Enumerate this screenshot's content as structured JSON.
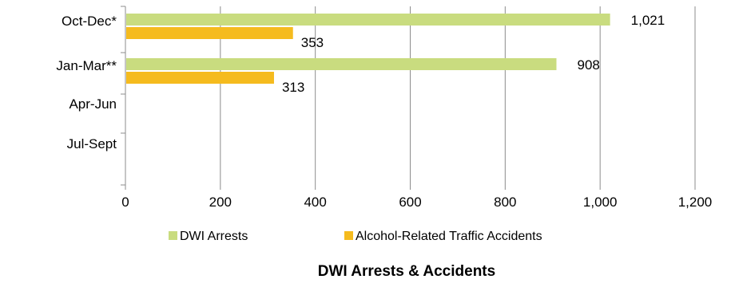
{
  "chart_data": {
    "type": "bar",
    "orientation": "horizontal",
    "title": "DWI Arrests & Accidents",
    "categories": [
      "Oct-Dec*",
      "Jan-Mar**",
      "Apr-Jun",
      "Jul-Sept"
    ],
    "series": [
      {
        "name": "DWI Arrests",
        "values": [
          1021,
          908,
          null,
          null
        ],
        "color": "#c9dc7f"
      },
      {
        "name": "Alcohol-Related Traffic Accidents",
        "values": [
          353,
          313,
          null,
          null
        ],
        "color": "#f5bb1e"
      }
    ],
    "data_labels": [
      "1,021",
      "353",
      "908",
      "313"
    ],
    "xlim": [
      0,
      1200
    ],
    "x_ticks": [
      "0",
      "200",
      "400",
      "600",
      "800",
      "1,000",
      "1,200"
    ],
    "xlabel": "",
    "ylabel": "",
    "grid": "vertical",
    "legend_position": "bottom"
  }
}
